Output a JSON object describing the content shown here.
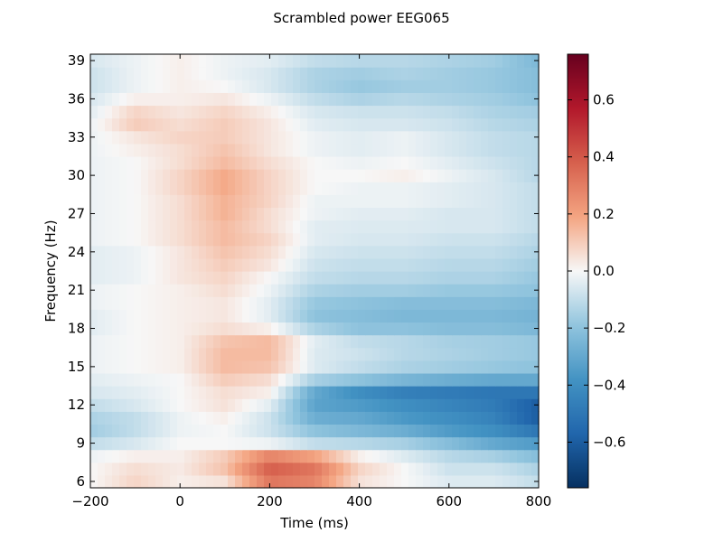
{
  "chart_data": {
    "type": "heatmap",
    "title": "Scrambled power EEG065",
    "xlabel": "Time (ms)",
    "ylabel": "Frequency (Hz)",
    "xlim": [
      -200,
      800
    ],
    "ylim": [
      5.5,
      39.5
    ],
    "xticks": [
      -200,
      0,
      200,
      400,
      600,
      800
    ],
    "yticks": [
      6,
      9,
      12,
      15,
      18,
      21,
      24,
      27,
      30,
      33,
      36,
      39
    ],
    "colormap": "RdBu_r",
    "colorbar": {
      "vmin": -0.76,
      "vmax": 0.76,
      "ticks": [
        -0.6,
        -0.4,
        -0.2,
        0.0,
        0.2,
        0.4,
        0.6
      ],
      "tick_labels": [
        "−0.6",
        "−0.4",
        "−0.2",
        "0.0",
        "0.2",
        "0.4",
        "0.6"
      ]
    },
    "x": [
      -200,
      -100,
      0,
      100,
      200,
      300,
      400,
      500,
      600,
      700,
      800
    ],
    "y": [
      6,
      7,
      8,
      9,
      10,
      11,
      12,
      13,
      14,
      15,
      16,
      17,
      18,
      19,
      20,
      21,
      22,
      23,
      24,
      25,
      26,
      27,
      28,
      29,
      30,
      31,
      32,
      33,
      34,
      35,
      36,
      37,
      38,
      39
    ],
    "values": [
      [
        0.0,
        0.08,
        0.02,
        0.05,
        0.32,
        0.28,
        0.05,
        0.0,
        -0.05,
        -0.05,
        -0.1
      ],
      [
        0.0,
        0.06,
        0.03,
        0.12,
        0.38,
        0.32,
        0.08,
        0.0,
        -0.08,
        -0.08,
        -0.14
      ],
      [
        -0.02,
        0.02,
        0.02,
        0.1,
        0.28,
        0.2,
        0.02,
        -0.05,
        -0.12,
        -0.15,
        -0.22
      ],
      [
        -0.1,
        -0.06,
        0.0,
        0.0,
        -0.02,
        -0.1,
        -0.12,
        -0.15,
        -0.22,
        -0.3,
        -0.35
      ],
      [
        -0.16,
        -0.1,
        -0.02,
        0.0,
        -0.08,
        -0.2,
        -0.24,
        -0.28,
        -0.35,
        -0.4,
        -0.5
      ],
      [
        -0.14,
        -0.1,
        -0.02,
        0.02,
        -0.08,
        -0.28,
        -0.3,
        -0.36,
        -0.4,
        -0.45,
        -0.6
      ],
      [
        -0.1,
        -0.06,
        0.0,
        0.05,
        -0.04,
        -0.32,
        -0.35,
        -0.4,
        -0.44,
        -0.48,
        -0.6
      ],
      [
        -0.06,
        -0.04,
        0.0,
        0.06,
        0.02,
        -0.3,
        -0.4,
        -0.46,
        -0.48,
        -0.5,
        -0.5
      ],
      [
        -0.04,
        -0.02,
        0.0,
        0.1,
        0.06,
        -0.15,
        -0.2,
        -0.25,
        -0.28,
        -0.3,
        -0.3
      ],
      [
        -0.02,
        0.0,
        0.02,
        0.14,
        0.12,
        -0.05,
        -0.1,
        -0.14,
        -0.16,
        -0.18,
        -0.2
      ],
      [
        -0.02,
        0.0,
        0.02,
        0.14,
        0.14,
        -0.05,
        -0.08,
        -0.12,
        -0.14,
        -0.16,
        -0.18
      ],
      [
        -0.02,
        0.0,
        0.02,
        0.12,
        0.14,
        -0.04,
        -0.1,
        -0.12,
        -0.15,
        -0.16,
        -0.18
      ],
      [
        -0.04,
        0.0,
        0.02,
        0.06,
        0.02,
        -0.14,
        -0.2,
        -0.2,
        -0.22,
        -0.22,
        -0.24
      ],
      [
        -0.04,
        0.0,
        0.02,
        0.04,
        -0.04,
        -0.2,
        -0.22,
        -0.24,
        -0.24,
        -0.24,
        -0.26
      ],
      [
        -0.02,
        0.0,
        0.02,
        0.04,
        -0.04,
        -0.18,
        -0.2,
        -0.22,
        -0.22,
        -0.22,
        -0.24
      ],
      [
        -0.02,
        0.0,
        0.02,
        0.06,
        -0.02,
        -0.14,
        -0.16,
        -0.16,
        -0.18,
        -0.18,
        -0.2
      ],
      [
        -0.04,
        -0.02,
        0.04,
        0.08,
        0.0,
        -0.1,
        -0.12,
        -0.12,
        -0.14,
        -0.14,
        -0.18
      ],
      [
        -0.04,
        -0.02,
        0.04,
        0.1,
        0.04,
        -0.08,
        -0.1,
        -0.1,
        -0.12,
        -0.12,
        -0.16
      ],
      [
        -0.04,
        -0.02,
        0.04,
        0.12,
        0.06,
        -0.06,
        -0.08,
        -0.08,
        -0.1,
        -0.1,
        -0.14
      ],
      [
        -0.02,
        0.0,
        0.06,
        0.14,
        0.08,
        -0.04,
        -0.06,
        -0.06,
        -0.08,
        -0.08,
        -0.12
      ],
      [
        -0.02,
        0.0,
        0.06,
        0.14,
        0.06,
        -0.04,
        -0.05,
        -0.05,
        -0.06,
        -0.06,
        -0.1
      ],
      [
        -0.02,
        0.0,
        0.06,
        0.16,
        0.06,
        -0.02,
        -0.04,
        -0.04,
        -0.06,
        -0.06,
        -0.1
      ],
      [
        -0.02,
        0.0,
        0.06,
        0.16,
        0.08,
        -0.02,
        -0.02,
        -0.02,
        -0.04,
        -0.06,
        -0.1
      ],
      [
        -0.02,
        0.0,
        0.08,
        0.18,
        0.08,
        0.0,
        -0.02,
        -0.02,
        -0.04,
        -0.06,
        -0.1
      ],
      [
        -0.02,
        0.0,
        0.08,
        0.18,
        0.08,
        0.0,
        0.0,
        0.02,
        -0.02,
        -0.06,
        -0.12
      ],
      [
        -0.02,
        0.0,
        0.06,
        0.14,
        0.06,
        0.0,
        -0.02,
        0.0,
        -0.04,
        -0.08,
        -0.12
      ],
      [
        -0.02,
        0.02,
        0.06,
        0.12,
        0.04,
        -0.02,
        -0.04,
        -0.02,
        -0.06,
        -0.1,
        -0.12
      ],
      [
        -0.02,
        0.04,
        0.08,
        0.1,
        0.04,
        -0.02,
        -0.04,
        -0.02,
        -0.06,
        -0.1,
        -0.12
      ],
      [
        -0.02,
        0.1,
        0.06,
        0.1,
        0.04,
        -0.04,
        -0.06,
        -0.06,
        -0.08,
        -0.12,
        -0.14
      ],
      [
        -0.04,
        0.08,
        0.04,
        0.08,
        0.02,
        -0.06,
        -0.08,
        -0.08,
        -0.1,
        -0.14,
        -0.16
      ],
      [
        -0.06,
        0.02,
        0.02,
        0.04,
        -0.02,
        -0.1,
        -0.14,
        -0.12,
        -0.14,
        -0.16,
        -0.2
      ],
      [
        -0.08,
        -0.02,
        0.02,
        0.0,
        -0.06,
        -0.14,
        -0.18,
        -0.16,
        -0.16,
        -0.18,
        -0.22
      ],
      [
        -0.08,
        -0.02,
        0.02,
        -0.02,
        -0.06,
        -0.14,
        -0.16,
        -0.14,
        -0.16,
        -0.18,
        -0.22
      ],
      [
        -0.06,
        -0.02,
        0.02,
        -0.02,
        -0.04,
        -0.1,
        -0.12,
        -0.12,
        -0.14,
        -0.16,
        -0.24
      ]
    ]
  }
}
